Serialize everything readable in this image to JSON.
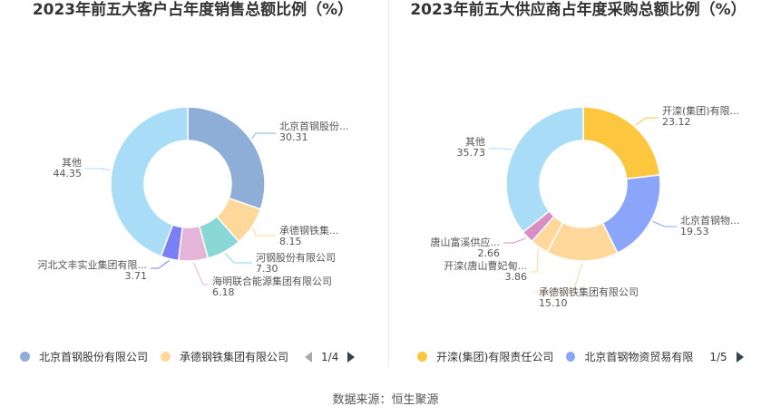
{
  "source_label": "数据来源：恒生聚源",
  "colors": [
    "#8eaed8",
    "#fdd89a",
    "#8ad7d8",
    "#e5b5d9",
    "#7b7ff6",
    "#a8dcf7"
  ],
  "colors_right": [
    "#fdc63f",
    "#8aa5f9",
    "#fdd89a",
    "#fdd89a",
    "#d98ec6",
    "#a8dcf7"
  ],
  "chart_data": [
    {
      "type": "pie",
      "title": "2023年前五大客户占年度销售总额比例（%）",
      "categories": [
        "北京首钢股份有限公司",
        "承德钢铁集团有限公司",
        "河钢股份有限公司",
        "海明联合能源集团有限公司",
        "河北文丰实业集团有限公司",
        "其他"
      ],
      "labels": [
        "北京首钢股份...",
        "承德钢铁集...",
        "河钢股份有限公司",
        "海明联合能源集团有限公司",
        "河北文丰实业集团有限...",
        "其他"
      ],
      "values": [
        30.31,
        8.15,
        7.3,
        6.18,
        3.71,
        44.35
      ],
      "value_labels": [
        "30.31",
        "8.15",
        "7.30",
        "6.18",
        "3.71",
        "44.35"
      ],
      "legend": {
        "visible_items": [
          "北京首钢股份有限公司",
          "承德钢铁集团有限公司"
        ],
        "page": "1/4",
        "placement": "bottom"
      }
    },
    {
      "type": "pie",
      "title": "2023年前五大供应商占年度采购总额比例（%）",
      "categories": [
        "开滦(集团)有限责任公司",
        "北京首钢物资贸易有限公司",
        "承德钢铁集团有限公司",
        "开滦(唐山曹妃甸)...",
        "唐山富溪供应...",
        "其他"
      ],
      "labels": [
        "开滦(集团)有限...",
        "北京首钢物...",
        "承德钢铁集团有限公司",
        "开滦(唐山曹妃甸...",
        "唐山富溪供应...",
        "其他"
      ],
      "values": [
        23.12,
        19.53,
        15.1,
        3.86,
        2.66,
        35.73
      ],
      "value_labels": [
        "23.12",
        "19.53",
        "15.10",
        "3.86",
        "2.66",
        "35.73"
      ],
      "legend": {
        "visible_items": [
          "开滦(集团)有限责任公司",
          "北京首钢物资贸易有限"
        ],
        "page": "1/5",
        "placement": "bottom"
      }
    }
  ]
}
